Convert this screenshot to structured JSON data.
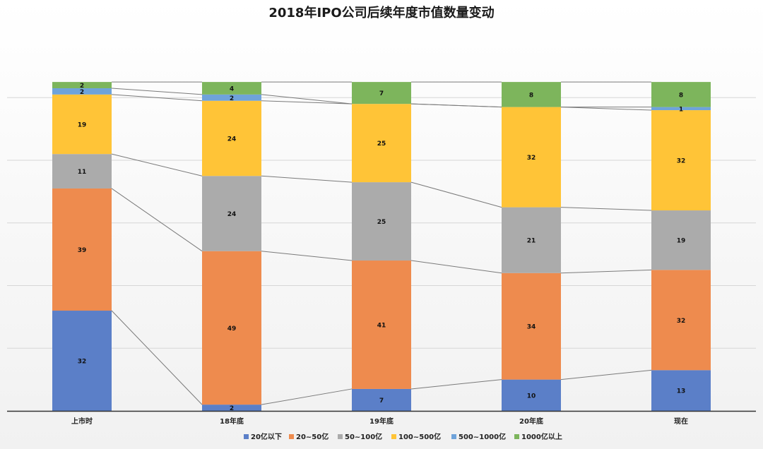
{
  "chart_data": {
    "type": "bar",
    "stacked": true,
    "title": "2018年IPO公司后续年度市值数量变动",
    "categories": [
      "上市时",
      "18年底",
      "19年底",
      "20年底",
      "现在"
    ],
    "series": [
      {
        "name": "20亿以下",
        "color": "#5B7FC8",
        "values": [
          32,
          2,
          7,
          10,
          13
        ]
      },
      {
        "name": "20~50亿",
        "color": "#EE8B4E",
        "values": [
          39,
          49,
          41,
          34,
          32
        ]
      },
      {
        "name": "50~100亿",
        "color": "#ABABAB",
        "values": [
          11,
          24,
          25,
          21,
          19
        ]
      },
      {
        "name": "100~500亿",
        "color": "#FFC437",
        "values": [
          19,
          24,
          25,
          32,
          32
        ]
      },
      {
        "name": "500~1000亿",
        "color": "#6FA3DA",
        "values": [
          2,
          2,
          0,
          0,
          1
        ]
      },
      {
        "name": "1000亿以上",
        "color": "#7DB55C",
        "values": [
          2,
          4,
          7,
          8,
          8
        ]
      }
    ],
    "ylim": [
      0,
      105
    ],
    "grid": true,
    "series_lines": true,
    "legend_position": "bottom"
  }
}
